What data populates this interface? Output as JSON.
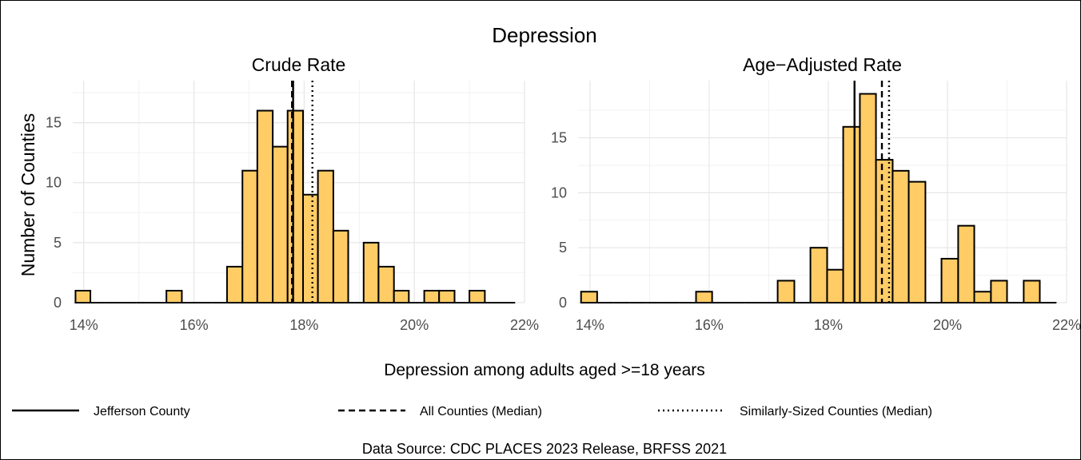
{
  "chart_data": {
    "type": "histogram",
    "title": "Depression",
    "xlabel": "Depression among adults aged >=18 years",
    "ylabel": "Number of Counties",
    "caption": "Data Source: CDC PLACES 2023 Release, BRFSS 2021",
    "xlim": [
      13.8,
      22.0
    ],
    "x_ticks": [
      "14%",
      "16%",
      "18%",
      "20%",
      "22%"
    ],
    "x_tick_values": [
      14,
      16,
      18,
      20,
      22
    ],
    "bar_color": "#FFCC66",
    "legend": {
      "position": "bottom",
      "items": [
        {
          "label": "Jefferson County",
          "line": "solid"
        },
        {
          "label": "All Counties (Median)",
          "line": "dashed"
        },
        {
          "label": "Similarly-Sized Counties (Median)",
          "line": "dotted"
        }
      ]
    },
    "panels": [
      {
        "subtitle": "Crude Rate",
        "ylim": [
          0,
          18.5
        ],
        "y_ticks": [
          0,
          5,
          10,
          15
        ],
        "bins": [
          {
            "x0": 13.85,
            "x1": 14.12,
            "count": 1
          },
          {
            "x0": 14.12,
            "x1": 14.4,
            "count": 0
          },
          {
            "x0": 14.4,
            "x1": 14.67,
            "count": 0
          },
          {
            "x0": 14.67,
            "x1": 14.95,
            "count": 0
          },
          {
            "x0": 14.95,
            "x1": 15.23,
            "count": 0
          },
          {
            "x0": 15.23,
            "x1": 15.5,
            "count": 0
          },
          {
            "x0": 15.5,
            "x1": 15.78,
            "count": 1
          },
          {
            "x0": 15.78,
            "x1": 16.05,
            "count": 0
          },
          {
            "x0": 16.05,
            "x1": 16.33,
            "count": 0
          },
          {
            "x0": 16.33,
            "x1": 16.6,
            "count": 0
          },
          {
            "x0": 16.6,
            "x1": 16.88,
            "count": 3
          },
          {
            "x0": 16.88,
            "x1": 17.15,
            "count": 11
          },
          {
            "x0": 17.15,
            "x1": 17.43,
            "count": 16
          },
          {
            "x0": 17.43,
            "x1": 17.7,
            "count": 13
          },
          {
            "x0": 17.7,
            "x1": 17.98,
            "count": 16
          },
          {
            "x0": 17.98,
            "x1": 18.25,
            "count": 9
          },
          {
            "x0": 18.25,
            "x1": 18.53,
            "count": 11
          },
          {
            "x0": 18.53,
            "x1": 18.8,
            "count": 6
          },
          {
            "x0": 18.8,
            "x1": 19.08,
            "count": 0
          },
          {
            "x0": 19.08,
            "x1": 19.35,
            "count": 5
          },
          {
            "x0": 19.35,
            "x1": 19.63,
            "count": 3
          },
          {
            "x0": 19.63,
            "x1": 19.9,
            "count": 1
          },
          {
            "x0": 19.9,
            "x1": 20.18,
            "count": 0
          },
          {
            "x0": 20.18,
            "x1": 20.45,
            "count": 1
          },
          {
            "x0": 20.45,
            "x1": 20.73,
            "count": 1
          },
          {
            "x0": 20.73,
            "x1": 21.0,
            "count": 0
          },
          {
            "x0": 21.0,
            "x1": 21.28,
            "count": 1
          },
          {
            "x0": 21.28,
            "x1": 21.55,
            "count": 0
          },
          {
            "x0": 21.55,
            "x1": 21.83,
            "count": 0
          }
        ],
        "reference_lines": {
          "jefferson_county": 17.8,
          "all_counties_median": 17.78,
          "similarly_sized_median": 18.15
        }
      },
      {
        "subtitle": "Age−Adjusted Rate",
        "ylim": [
          0,
          20.2
        ],
        "y_ticks": [
          0,
          5,
          10,
          15
        ],
        "bins": [
          {
            "x0": 13.85,
            "x1": 14.12,
            "count": 1
          },
          {
            "x0": 14.12,
            "x1": 14.4,
            "count": 0
          },
          {
            "x0": 14.4,
            "x1": 14.67,
            "count": 0
          },
          {
            "x0": 14.67,
            "x1": 14.95,
            "count": 0
          },
          {
            "x0": 14.95,
            "x1": 15.23,
            "count": 0
          },
          {
            "x0": 15.23,
            "x1": 15.5,
            "count": 0
          },
          {
            "x0": 15.5,
            "x1": 15.78,
            "count": 0
          },
          {
            "x0": 15.78,
            "x1": 16.05,
            "count": 1
          },
          {
            "x0": 16.05,
            "x1": 16.33,
            "count": 0
          },
          {
            "x0": 16.33,
            "x1": 16.6,
            "count": 0
          },
          {
            "x0": 16.6,
            "x1": 16.88,
            "count": 0
          },
          {
            "x0": 16.88,
            "x1": 17.15,
            "count": 0
          },
          {
            "x0": 17.15,
            "x1": 17.43,
            "count": 2
          },
          {
            "x0": 17.43,
            "x1": 17.7,
            "count": 0
          },
          {
            "x0": 17.7,
            "x1": 17.98,
            "count": 5
          },
          {
            "x0": 17.98,
            "x1": 18.25,
            "count": 3
          },
          {
            "x0": 18.25,
            "x1": 18.53,
            "count": 16
          },
          {
            "x0": 18.53,
            "x1": 18.8,
            "count": 19
          },
          {
            "x0": 18.8,
            "x1": 19.08,
            "count": 13
          },
          {
            "x0": 19.08,
            "x1": 19.35,
            "count": 12
          },
          {
            "x0": 19.35,
            "x1": 19.63,
            "count": 11
          },
          {
            "x0": 19.63,
            "x1": 19.9,
            "count": 0
          },
          {
            "x0": 19.9,
            "x1": 20.18,
            "count": 4
          },
          {
            "x0": 20.18,
            "x1": 20.45,
            "count": 7
          },
          {
            "x0": 20.45,
            "x1": 20.73,
            "count": 1
          },
          {
            "x0": 20.73,
            "x1": 21.0,
            "count": 2
          },
          {
            "x0": 21.0,
            "x1": 21.28,
            "count": 0
          },
          {
            "x0": 21.28,
            "x1": 21.55,
            "count": 2
          },
          {
            "x0": 21.55,
            "x1": 21.83,
            "count": 0
          }
        ],
        "reference_lines": {
          "jefferson_county": 18.44,
          "all_counties_median": 18.9,
          "similarly_sized_median": 19.02
        }
      }
    ]
  }
}
